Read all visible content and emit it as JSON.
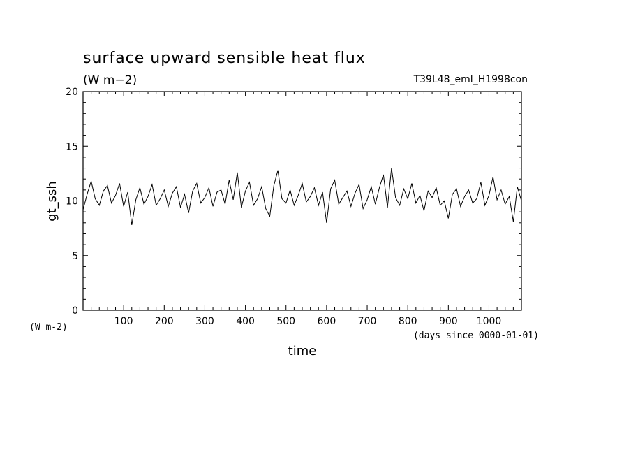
{
  "chart_data": {
    "type": "line",
    "title": "surface upward sensible heat flux",
    "units_label": "(W m−2)",
    "experiment": "T39L48_eml_H1998con",
    "xlabel": "time",
    "xunits": "(days since 0000-01-01)",
    "ylabel": "gt_ssh",
    "yunits": "(W m-2)",
    "xlim": [
      0,
      1080
    ],
    "ylim": [
      0,
      20
    ],
    "xticks": [
      100,
      200,
      300,
      400,
      500,
      600,
      700,
      800,
      900,
      1000
    ],
    "yticks": [
      0,
      5,
      10,
      15,
      20
    ],
    "grid": false,
    "series": [
      {
        "x": [
          0,
          10,
          20,
          30,
          40,
          50,
          60,
          70,
          80,
          90,
          100,
          110,
          120,
          130,
          140,
          150,
          160,
          170,
          180,
          190,
          200,
          210,
          220,
          230,
          240,
          250,
          260,
          270,
          280,
          290,
          300,
          310,
          320,
          330,
          340,
          350,
          360,
          370,
          380,
          390,
          400,
          410,
          420,
          430,
          440,
          450,
          460,
          470,
          480,
          490,
          500,
          510,
          520,
          530,
          540,
          550,
          560,
          570,
          580,
          590,
          600,
          610,
          620,
          630,
          640,
          650,
          660,
          670,
          680,
          690,
          700,
          710,
          720,
          730,
          740,
          750,
          760,
          770,
          780,
          790,
          800,
          810,
          820,
          830,
          840,
          850,
          860,
          870,
          880,
          890,
          900,
          910,
          920,
          930,
          940,
          950,
          960,
          970,
          980,
          990,
          1000,
          1010,
          1020,
          1030,
          1040,
          1050,
          1060,
          1070,
          1080
        ],
        "values": [
          9.2,
          10.6,
          11.8,
          10.2,
          9.6,
          10.9,
          11.4,
          9.8,
          10.5,
          11.6,
          9.5,
          10.8,
          7.8,
          10.1,
          11.2,
          9.7,
          10.4,
          11.5,
          9.6,
          10.2,
          11.0,
          9.5,
          10.7,
          11.3,
          9.4,
          10.6,
          8.9,
          10.9,
          11.6,
          9.8,
          10.3,
          11.2,
          9.5,
          10.8,
          11.0,
          9.7,
          11.9,
          10.1,
          12.6,
          9.4,
          10.9,
          11.7,
          9.6,
          10.2,
          11.3,
          9.3,
          8.6,
          11.4,
          12.8,
          10.2,
          9.8,
          11.0,
          9.6,
          10.5,
          11.6,
          9.9,
          10.4,
          11.2,
          9.6,
          10.8,
          8.0,
          11.1,
          11.9,
          9.7,
          10.3,
          10.9,
          9.5,
          10.7,
          11.5,
          9.3,
          10.1,
          11.3,
          9.7,
          11.2,
          12.4,
          9.4,
          13.0,
          10.3,
          9.6,
          11.1,
          10.2,
          11.6,
          9.8,
          10.5,
          9.1,
          10.9,
          10.3,
          11.2,
          9.6,
          10.0,
          8.4,
          10.6,
          11.1,
          9.5,
          10.4,
          11.0,
          9.8,
          10.2,
          11.7,
          9.6,
          10.5,
          12.2,
          10.1,
          11.0,
          9.7,
          10.4,
          8.1,
          11.3,
          10.0
        ]
      }
    ]
  }
}
